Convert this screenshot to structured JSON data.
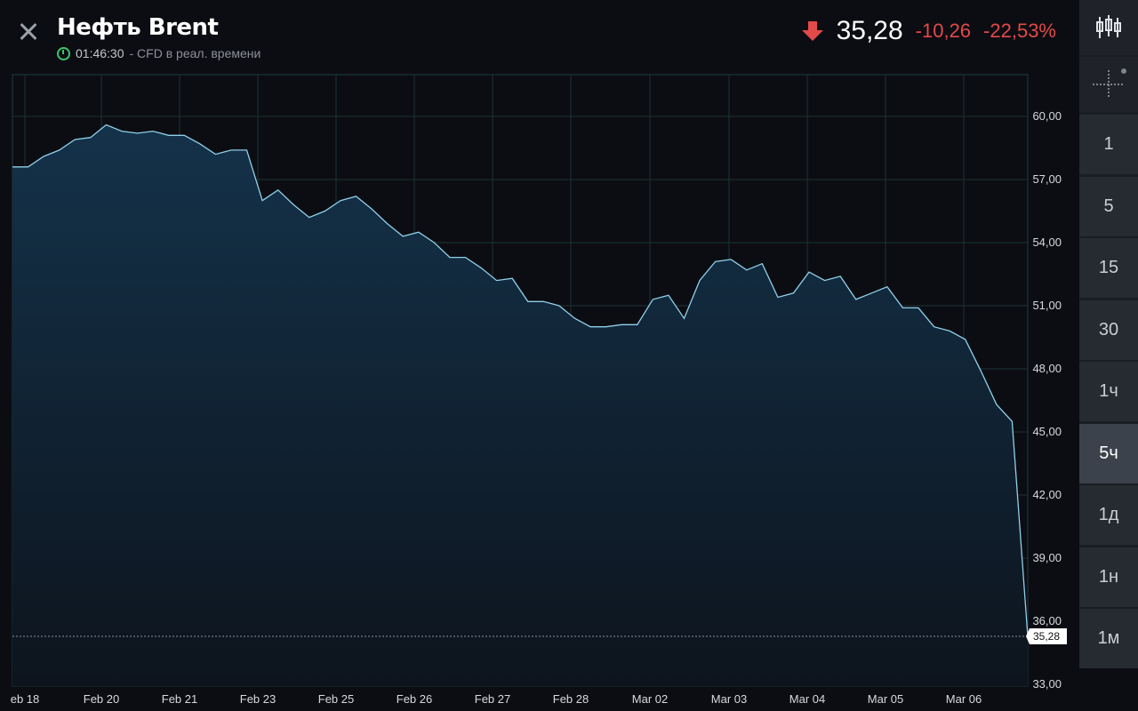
{
  "header": {
    "title": "Нефть Brent",
    "time": "01:46:30",
    "subtitle_suffix": "- CFD в реал. времени",
    "price": "35,28",
    "change_abs": "-10,26",
    "change_pct": "-22,53%",
    "down_color": "#e24a4a"
  },
  "toolbar": {
    "items": [
      {
        "label": "1"
      },
      {
        "label": "5"
      },
      {
        "label": "15"
      },
      {
        "label": "30"
      },
      {
        "label": "1ч"
      },
      {
        "label": "5ч",
        "active": true
      },
      {
        "label": "1д"
      },
      {
        "label": "1н"
      },
      {
        "label": "1м"
      }
    ]
  },
  "chart_data": {
    "type": "area",
    "ylim": [
      33,
      61
    ],
    "y_ticks": [
      "60,00",
      "57,00",
      "54,00",
      "51,00",
      "48,00",
      "45,00",
      "42,00",
      "39,00",
      "36,00",
      "33,00"
    ],
    "y_tick_values": [
      60,
      57,
      54,
      51,
      48,
      45,
      42,
      39,
      36,
      33
    ],
    "x_ticks": [
      "eb 18",
      "Feb 20",
      "Feb 21",
      "Feb 23",
      "Feb 25",
      "Feb 26",
      "Feb 27",
      "Feb 28",
      "Mar 02",
      "Mar 03",
      "Mar 04",
      "Mar 05",
      "Mar 06"
    ],
    "last_label": "35,28",
    "last_value": 35.28,
    "line_color": "#8fd0ea",
    "values": [
      57.6,
      57.6,
      58.1,
      58.4,
      58.9,
      59.0,
      59.6,
      59.3,
      59.2,
      59.3,
      59.1,
      59.1,
      58.7,
      58.2,
      58.4,
      58.4,
      56.0,
      56.5,
      55.8,
      55.2,
      55.5,
      56.0,
      56.2,
      55.6,
      54.9,
      54.3,
      54.5,
      54.0,
      53.3,
      53.3,
      52.8,
      52.2,
      52.3,
      51.2,
      51.2,
      51.0,
      50.4,
      50.0,
      50.0,
      50.1,
      50.1,
      51.3,
      51.5,
      50.4,
      52.2,
      53.1,
      53.2,
      52.7,
      53.0,
      51.4,
      51.6,
      52.6,
      52.2,
      52.4,
      51.3,
      51.6,
      51.9,
      50.9,
      50.9,
      50.0,
      49.8,
      49.4,
      47.9,
      46.3,
      45.5,
      35.28
    ]
  }
}
